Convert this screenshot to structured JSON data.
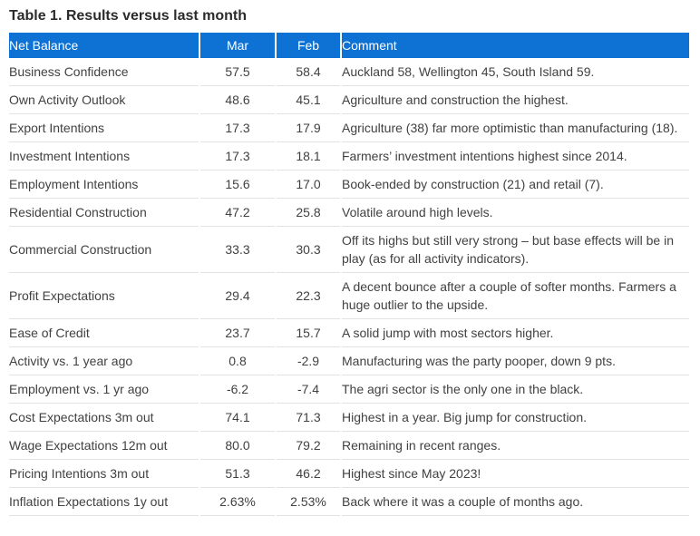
{
  "title": "Table 1. Results versus last month",
  "colors": {
    "header_bg": "#0d72d4",
    "header_text": "#ffffff",
    "body_text": "#414141",
    "row_separator": "#e2e2e2",
    "title_text": "#2b2b2b"
  },
  "table": {
    "headers": [
      "Net Balance",
      "Mar",
      "Feb",
      "Comment"
    ],
    "rows": [
      {
        "name": "Business Confidence",
        "mar": "57.5",
        "feb": "58.4",
        "comment": "Auckland 58, Wellington 45, South Island 59."
      },
      {
        "name": "Own Activity Outlook",
        "mar": "48.6",
        "feb": "45.1",
        "comment": "Agriculture and construction the highest."
      },
      {
        "name": "Export Intentions",
        "mar": "17.3",
        "feb": "17.9",
        "comment": "Agriculture (38) far more optimistic than manufacturing (18)."
      },
      {
        "name": "Investment Intentions",
        "mar": "17.3",
        "feb": "18.1",
        "comment": "Farmers’ investment intentions highest since 2014."
      },
      {
        "name": "Employment Intentions",
        "mar": "15.6",
        "feb": "17.0",
        "comment": "Book-ended by construction (21) and retail (7)."
      },
      {
        "name": "Residential Construction",
        "mar": "47.2",
        "feb": "25.8",
        "comment": "Volatile around high levels."
      },
      {
        "name": "Commercial Construction",
        "mar": "33.3",
        "feb": "30.3",
        "comment": "Off its highs but still very strong – but base effects will be in play (as for all activity indicators)."
      },
      {
        "name": "Profit Expectations",
        "mar": "29.4",
        "feb": "22.3",
        "comment": "A decent bounce after a couple of softer months. Farmers a huge outlier to the upside."
      },
      {
        "name": "Ease of Credit",
        "mar": "23.7",
        "feb": "15.7",
        "comment": "A solid jump with most sectors higher."
      },
      {
        "name": "Activity vs. 1 year ago",
        "mar": "0.8",
        "feb": "-2.9",
        "comment": "Manufacturing was the party pooper, down 9 pts."
      },
      {
        "name": "Employment vs. 1 yr ago",
        "mar": "-6.2",
        "feb": "-7.4",
        "comment": "The agri sector is the only one in the black."
      },
      {
        "name": "Cost Expectations 3m out",
        "mar": "74.1",
        "feb": "71.3",
        "comment": "Highest in a year. Big jump for construction."
      },
      {
        "name": "Wage Expectations 12m out",
        "mar": "80.0",
        "feb": "79.2",
        "comment": "Remaining in recent ranges."
      },
      {
        "name": "Pricing Intentions 3m out",
        "mar": "51.3",
        "feb": "46.2",
        "comment": "Highest since May 2023!"
      },
      {
        "name": "Inflation Expectations 1y out",
        "mar": "2.63%",
        "feb": "2.53%",
        "comment": "Back where it was a couple of months ago."
      }
    ]
  }
}
